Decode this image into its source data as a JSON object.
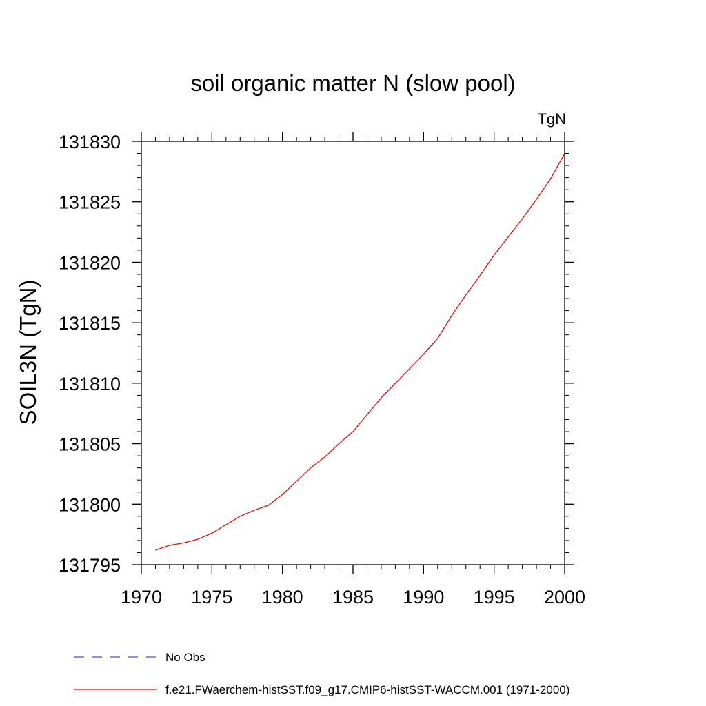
{
  "chart_data": {
    "type": "line",
    "title": "soil organic matter N (slow pool)",
    "units": "TgN",
    "ylabel": "SOIL3N  (TgN)",
    "xlabel": "",
    "xlim": [
      1970,
      2000
    ],
    "ylim": [
      131795,
      131830
    ],
    "x_ticks": [
      "1970",
      "1975",
      "1980",
      "1985",
      "1990",
      "1995",
      "2000"
    ],
    "y_ticks": [
      "131795",
      "131800",
      "131805",
      "131810",
      "131815",
      "131820",
      "131825",
      "131830"
    ],
    "grid": false,
    "series": [
      {
        "name": "f.e21.FWaerchem-histSST.f09_g17.CMIP6-histSST-WACCM.001 (1971-2000)",
        "color": "#ff0000",
        "style": "solid",
        "x": [
          1971,
          1972,
          1973,
          1974,
          1975,
          1976,
          1977,
          1978,
          1979,
          1980,
          1981,
          1982,
          1983,
          1984,
          1985,
          1986,
          1987,
          1988,
          1989,
          1990,
          1991,
          1992,
          1993,
          1994,
          1995,
          1996,
          1997,
          1998,
          1999,
          2000
        ],
        "y": [
          131796.2,
          131796.6,
          131796.8,
          131797.1,
          131797.6,
          131798.3,
          131799.0,
          131799.5,
          131799.9,
          131800.8,
          131801.9,
          131803.0,
          131803.9,
          131805.0,
          131806.0,
          131807.4,
          131808.8,
          131810.0,
          131811.2,
          131812.4,
          131813.7,
          131815.6,
          131817.3,
          131818.9,
          131820.6,
          131822.1,
          131823.6,
          131825.2,
          131826.9,
          131829.0
        ]
      }
    ],
    "legend": [
      {
        "label": "No Obs",
        "color": "#5a4fb5",
        "style": "dashed"
      },
      {
        "label": "f.e21.FWaerchem-histSST.f09_g17.CMIP6-histSST-WACCM.001 (1971-2000)",
        "color": "#ff0000",
        "style": "solid"
      }
    ],
    "legend_position": "bottom"
  }
}
